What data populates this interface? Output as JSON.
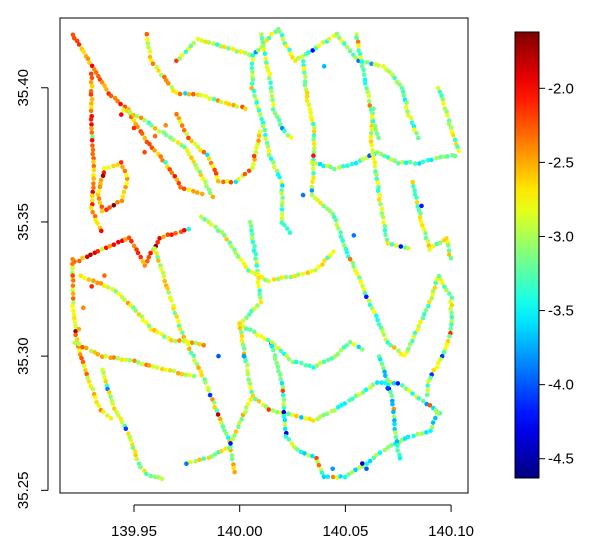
{
  "chart_data": {
    "type": "scatter",
    "title": "",
    "xlabel": "",
    "ylabel": "",
    "xlim": [
      139.915,
      140.108
    ],
    "ylim": [
      35.249,
      35.426
    ],
    "x_ticks": [
      "139.95",
      "140.00",
      "140.05",
      "140.10"
    ],
    "x_tick_values": [
      139.95,
      140.0,
      140.05,
      140.1
    ],
    "y_ticks": [
      "35.25",
      "35.30",
      "35.35",
      "35.40"
    ],
    "y_tick_values": [
      35.25,
      35.3,
      35.35,
      35.4
    ],
    "grid": false,
    "legend": {
      "type": "colorbar",
      "placement": "right",
      "range": [
        -4.63,
        -1.62
      ],
      "ticks": [
        "-2.0",
        "-2.5",
        "-3.0",
        "-3.5",
        "-4.0",
        "-4.5"
      ],
      "tick_values": [
        -2.0,
        -2.5,
        -3.0,
        -3.5,
        -4.0,
        -4.5
      ],
      "colors": [
        "#00007f",
        "#0000ff",
        "#007fff",
        "#00ffff",
        "#7fff7f",
        "#ffff00",
        "#ff7f00",
        "#ff0000",
        "#7f0000"
      ]
    },
    "routes": [
      {
        "v": -2.35,
        "pts": [
          [
            139.921,
            35.42
          ],
          [
            139.93,
            35.408
          ],
          [
            139.938,
            35.398
          ],
          [
            139.947,
            35.392
          ],
          [
            139.956,
            35.38
          ],
          [
            139.965,
            35.372
          ],
          [
            139.972,
            35.363
          ],
          [
            139.984,
            35.36
          ]
        ]
      },
      {
        "v": -2.2,
        "pts": [
          [
            139.922,
            35.335
          ],
          [
            139.935,
            35.34
          ],
          [
            139.948,
            35.344
          ],
          [
            139.955,
            35.334
          ],
          [
            139.962,
            35.344
          ],
          [
            139.978,
            35.348
          ]
        ]
      },
      {
        "v": -2.3,
        "pts": [
          [
            139.93,
            35.405
          ],
          [
            139.93,
            35.385
          ],
          [
            139.931,
            35.366
          ],
          [
            139.93,
            35.355
          ],
          [
            139.935,
            35.345
          ]
        ]
      },
      {
        "v": -2.6,
        "pts": [
          [
            139.921,
            35.336
          ],
          [
            139.921,
            35.32
          ],
          [
            139.923,
            35.305
          ],
          [
            139.928,
            35.292
          ],
          [
            139.934,
            35.28
          ],
          [
            139.941,
            35.276
          ]
        ]
      },
      {
        "v": -2.75,
        "pts": [
          [
            139.925,
            35.33
          ],
          [
            139.94,
            35.325
          ],
          [
            139.95,
            35.318
          ],
          [
            139.958,
            35.31
          ],
          [
            139.968,
            35.306
          ],
          [
            139.985,
            35.304
          ]
        ]
      },
      {
        "v": -2.7,
        "pts": [
          [
            139.922,
            35.305
          ],
          [
            139.935,
            35.3
          ],
          [
            139.95,
            35.298
          ],
          [
            139.965,
            35.295
          ],
          [
            139.98,
            35.292
          ]
        ]
      },
      {
        "v": -2.95,
        "pts": [
          [
            139.935,
            35.295
          ],
          [
            139.94,
            35.282
          ],
          [
            139.948,
            35.27
          ],
          [
            139.952,
            35.26
          ],
          [
            139.956,
            35.256
          ],
          [
            139.965,
            35.254
          ]
        ]
      },
      {
        "v": -2.85,
        "pts": [
          [
            139.96,
            35.34
          ],
          [
            139.966,
            35.325
          ],
          [
            139.972,
            35.31
          ],
          [
            139.978,
            35.3
          ],
          [
            139.984,
            35.29
          ],
          [
            139.99,
            35.278
          ],
          [
            139.995,
            35.268
          ],
          [
            139.998,
            35.255
          ]
        ]
      },
      {
        "v": -2.9,
        "pts": [
          [
            139.982,
            35.352
          ],
          [
            139.993,
            35.345
          ],
          [
            140.004,
            35.332
          ],
          [
            140.014,
            35.328
          ],
          [
            140.026,
            35.33
          ],
          [
            140.036,
            35.332
          ],
          [
            140.046,
            35.34
          ]
        ]
      },
      {
        "v": -2.6,
        "pts": [
          [
            139.956,
            35.42
          ],
          [
            139.958,
            35.41
          ],
          [
            139.963,
            35.405
          ],
          [
            139.97,
            35.398
          ],
          [
            139.982,
            35.397
          ],
          [
            139.995,
            35.394
          ],
          [
            140.005,
            35.392
          ]
        ]
      },
      {
        "v": -2.55,
        "pts": [
          [
            139.97,
            35.39
          ],
          [
            139.977,
            35.38
          ],
          [
            139.985,
            35.375
          ],
          [
            139.99,
            35.365
          ],
          [
            139.998,
            35.365
          ],
          [
            140.006,
            35.37
          ],
          [
            140.01,
            35.385
          ]
        ]
      },
      {
        "v": -2.45,
        "pts": [
          [
            139.933,
            35.36
          ],
          [
            139.935,
            35.354
          ],
          [
            139.944,
            35.358
          ],
          [
            139.947,
            35.366
          ],
          [
            139.944,
            35.372
          ],
          [
            139.936,
            35.37
          ],
          [
            139.933,
            35.36
          ]
        ]
      },
      {
        "v": -2.8,
        "pts": [
          [
            139.945,
            35.392
          ],
          [
            139.955,
            35.388
          ],
          [
            139.962,
            35.384
          ],
          [
            139.974,
            35.378
          ],
          [
            139.98,
            35.37
          ],
          [
            139.988,
            35.358
          ]
        ]
      },
      {
        "v": -3.05,
        "pts": [
          [
            139.97,
            35.41
          ],
          [
            139.98,
            35.418
          ],
          [
            139.993,
            35.415
          ],
          [
            140.006,
            35.412
          ],
          [
            140.018,
            35.422
          ],
          [
            140.026,
            35.41
          ],
          [
            140.036,
            35.415
          ]
        ]
      },
      {
        "v": -3.1,
        "pts": [
          [
            140.006,
            35.412
          ],
          [
            140.006,
            35.4
          ],
          [
            140.01,
            35.39
          ],
          [
            140.014,
            35.375
          ],
          [
            140.02,
            35.365
          ],
          [
            140.02,
            35.35
          ],
          [
            140.025,
            35.345
          ]
        ]
      },
      {
        "v": -3.0,
        "pts": [
          [
            140.03,
            35.41
          ],
          [
            140.032,
            35.395
          ],
          [
            140.035,
            35.385
          ],
          [
            140.035,
            35.37
          ],
          [
            140.034,
            35.36
          ],
          [
            140.04,
            35.356
          ],
          [
            140.045,
            35.352
          ]
        ]
      },
      {
        "v": -3.15,
        "pts": [
          [
            140.036,
            35.415
          ],
          [
            140.046,
            35.42
          ],
          [
            140.056,
            35.41
          ],
          [
            140.068,
            35.408
          ],
          [
            140.077,
            35.4
          ],
          [
            140.08,
            35.39
          ],
          [
            140.085,
            35.38
          ]
        ]
      },
      {
        "v": -3.2,
        "pts": [
          [
            140.034,
            35.372
          ],
          [
            140.045,
            35.37
          ],
          [
            140.055,
            35.372
          ],
          [
            140.065,
            35.376
          ],
          [
            140.075,
            35.372
          ],
          [
            140.085,
            35.372
          ],
          [
            140.095,
            35.374
          ],
          [
            140.104,
            35.375
          ]
        ]
      },
      {
        "v": -3.0,
        "pts": [
          [
            140.063,
            35.392
          ],
          [
            140.062,
            35.38
          ],
          [
            140.064,
            35.372
          ],
          [
            140.066,
            35.36
          ],
          [
            140.068,
            35.35
          ],
          [
            140.07,
            35.342
          ],
          [
            140.082,
            35.34
          ]
        ]
      },
      {
        "v": -2.95,
        "pts": [
          [
            140.082,
            35.365
          ],
          [
            140.086,
            35.35
          ],
          [
            140.09,
            35.34
          ],
          [
            140.098,
            35.344
          ],
          [
            140.1,
            35.335
          ]
        ]
      },
      {
        "v": -3.1,
        "pts": [
          [
            140.045,
            35.352
          ],
          [
            140.05,
            35.34
          ],
          [
            140.055,
            35.332
          ],
          [
            140.06,
            35.322
          ],
          [
            140.066,
            35.312
          ],
          [
            140.07,
            35.305
          ],
          [
            140.078,
            35.3
          ]
        ]
      },
      {
        "v": -3.0,
        "pts": [
          [
            140.078,
            35.3
          ],
          [
            140.084,
            35.31
          ],
          [
            140.09,
            35.32
          ],
          [
            140.094,
            35.33
          ],
          [
            140.1,
            35.322
          ],
          [
            140.1,
            35.31
          ],
          [
            140.096,
            35.3
          ],
          [
            140.09,
            35.292
          ],
          [
            140.088,
            35.284
          ]
        ]
      },
      {
        "v": -3.1,
        "pts": [
          [
            140.0,
            35.312
          ],
          [
            140.015,
            35.305
          ],
          [
            140.025,
            35.298
          ],
          [
            140.035,
            35.296
          ],
          [
            140.045,
            35.3
          ],
          [
            140.052,
            35.305
          ],
          [
            140.06,
            35.302
          ]
        ]
      },
      {
        "v": -2.9,
        "pts": [
          [
            140.0,
            35.312
          ],
          [
            140.003,
            35.298
          ],
          [
            140.006,
            35.285
          ],
          [
            140.014,
            35.28
          ],
          [
            140.025,
            35.278
          ],
          [
            140.035,
            35.276
          ],
          [
            140.045,
            35.28
          ]
        ]
      },
      {
        "v": -3.2,
        "pts": [
          [
            140.045,
            35.28
          ],
          [
            140.055,
            35.285
          ],
          [
            140.065,
            35.29
          ],
          [
            140.075,
            35.29
          ],
          [
            140.085,
            35.284
          ],
          [
            140.096,
            35.278
          ]
        ]
      },
      {
        "v": -3.25,
        "pts": [
          [
            140.015,
            35.305
          ],
          [
            140.02,
            35.29
          ],
          [
            140.022,
            35.27
          ],
          [
            140.027,
            35.265
          ],
          [
            140.036,
            35.262
          ],
          [
            140.04,
            35.255
          ],
          [
            140.05,
            35.255
          ]
        ]
      },
      {
        "v": -3.3,
        "pts": [
          [
            140.05,
            35.255
          ],
          [
            140.06,
            35.26
          ],
          [
            140.07,
            35.266
          ],
          [
            140.08,
            35.27
          ],
          [
            140.09,
            35.272
          ],
          [
            140.094,
            35.28
          ]
        ]
      },
      {
        "v": -2.95,
        "pts": [
          [
            139.975,
            35.26
          ],
          [
            139.985,
            35.262
          ],
          [
            139.995,
            35.266
          ],
          [
            140.0,
            35.275
          ],
          [
            140.006,
            35.285
          ]
        ]
      },
      {
        "v": -3.05,
        "pts": [
          [
            140.01,
            35.42
          ],
          [
            140.014,
            35.405
          ],
          [
            140.016,
            35.392
          ],
          [
            140.02,
            35.385
          ],
          [
            140.026,
            35.38
          ]
        ]
      },
      {
        "v": -3.1,
        "pts": [
          [
            140.055,
            35.42
          ],
          [
            140.058,
            35.408
          ],
          [
            140.062,
            35.392
          ],
          [
            140.066,
            35.38
          ]
        ]
      },
      {
        "v": -3.0,
        "pts": [
          [
            140.094,
            35.4
          ],
          [
            140.1,
            35.385
          ],
          [
            140.104,
            35.375
          ]
        ]
      },
      {
        "v": -3.35,
        "pts": [
          [
            140.066,
            35.3
          ],
          [
            140.072,
            35.285
          ],
          [
            140.074,
            35.27
          ],
          [
            140.076,
            35.26
          ]
        ]
      },
      {
        "v": -3.05,
        "pts": [
          [
            140.005,
            35.35
          ],
          [
            140.008,
            35.335
          ],
          [
            140.01,
            35.32
          ],
          [
            140.0,
            35.312
          ]
        ]
      }
    ],
    "scatter": [
      {
        "x": 139.921,
        "y": 35.33,
        "v": -2.2
      },
      {
        "x": 139.926,
        "y": 35.318,
        "v": -2.4
      },
      {
        "x": 139.93,
        "y": 35.326,
        "v": -2.1
      },
      {
        "x": 139.924,
        "y": 35.31,
        "v": -2.5
      },
      {
        "x": 139.936,
        "y": 35.33,
        "v": -2.3
      },
      {
        "x": 139.95,
        "y": 35.385,
        "v": -2.1
      },
      {
        "x": 139.955,
        "y": 35.376,
        "v": -2.2
      },
      {
        "x": 139.96,
        "y": 35.382,
        "v": -2.3
      },
      {
        "x": 139.944,
        "y": 35.39,
        "v": -2.0
      },
      {
        "x": 139.965,
        "y": 35.386,
        "v": -2.4
      },
      {
        "x": 140.086,
        "y": 35.356,
        "v": -4.2
      },
      {
        "x": 140.054,
        "y": 35.345,
        "v": -3.9
      },
      {
        "x": 140.07,
        "y": 35.288,
        "v": -4.1
      },
      {
        "x": 140.058,
        "y": 35.26,
        "v": -4.4
      },
      {
        "x": 140.06,
        "y": 35.258,
        "v": -4.0
      },
      {
        "x": 140.044,
        "y": 35.258,
        "v": -3.8
      },
      {
        "x": 140.03,
        "y": 35.36,
        "v": -3.9
      },
      {
        "x": 140.04,
        "y": 35.408,
        "v": -3.7
      },
      {
        "x": 140.002,
        "y": 35.3,
        "v": -3.8
      },
      {
        "x": 139.99,
        "y": 35.3,
        "v": -4.0
      }
    ]
  }
}
